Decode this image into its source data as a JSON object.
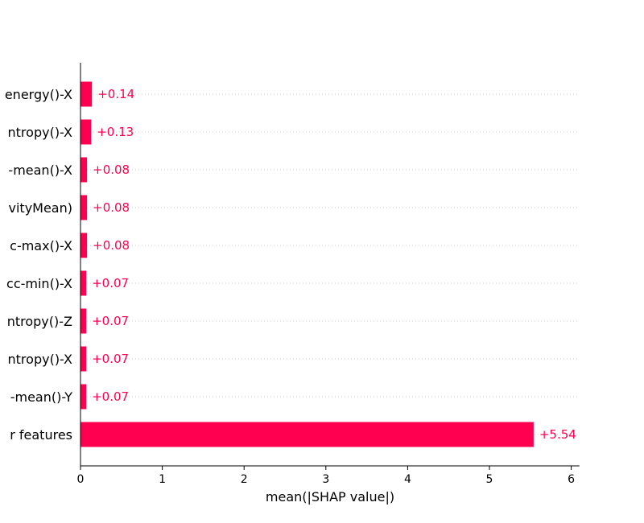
{
  "chart_data": {
    "type": "bar",
    "orientation": "horizontal",
    "categories": [
      "energy()-X",
      "ntropy()-X",
      "-mean()-X",
      "vityMean)",
      "c-max()-X",
      "cc-min()-X",
      "ntropy()-Z",
      "ntropy()-X",
      "-mean()-Y",
      "r features"
    ],
    "values": [
      0.14,
      0.13,
      0.08,
      0.08,
      0.08,
      0.07,
      0.07,
      0.07,
      0.07,
      5.54
    ],
    "value_labels": [
      "+0.14",
      "+0.13",
      "+0.08",
      "+0.08",
      "+0.08",
      "+0.07",
      "+0.07",
      "+0.07",
      "+0.07",
      "+5.54"
    ],
    "xlabel": "mean(|SHAP value|)",
    "ylabel": "",
    "xlim": [
      0,
      6.1
    ],
    "xticks": [
      0,
      1,
      2,
      3,
      4,
      5,
      6
    ],
    "xtick_labels": [
      "0",
      "1",
      "2",
      "3",
      "4",
      "5",
      "6"
    ],
    "grid": "dotted horizontal row guides",
    "colors": {
      "bar": "#ff0051",
      "value_text": "#ff0051",
      "axis": "#000000",
      "guide": "#cccccc"
    }
  }
}
